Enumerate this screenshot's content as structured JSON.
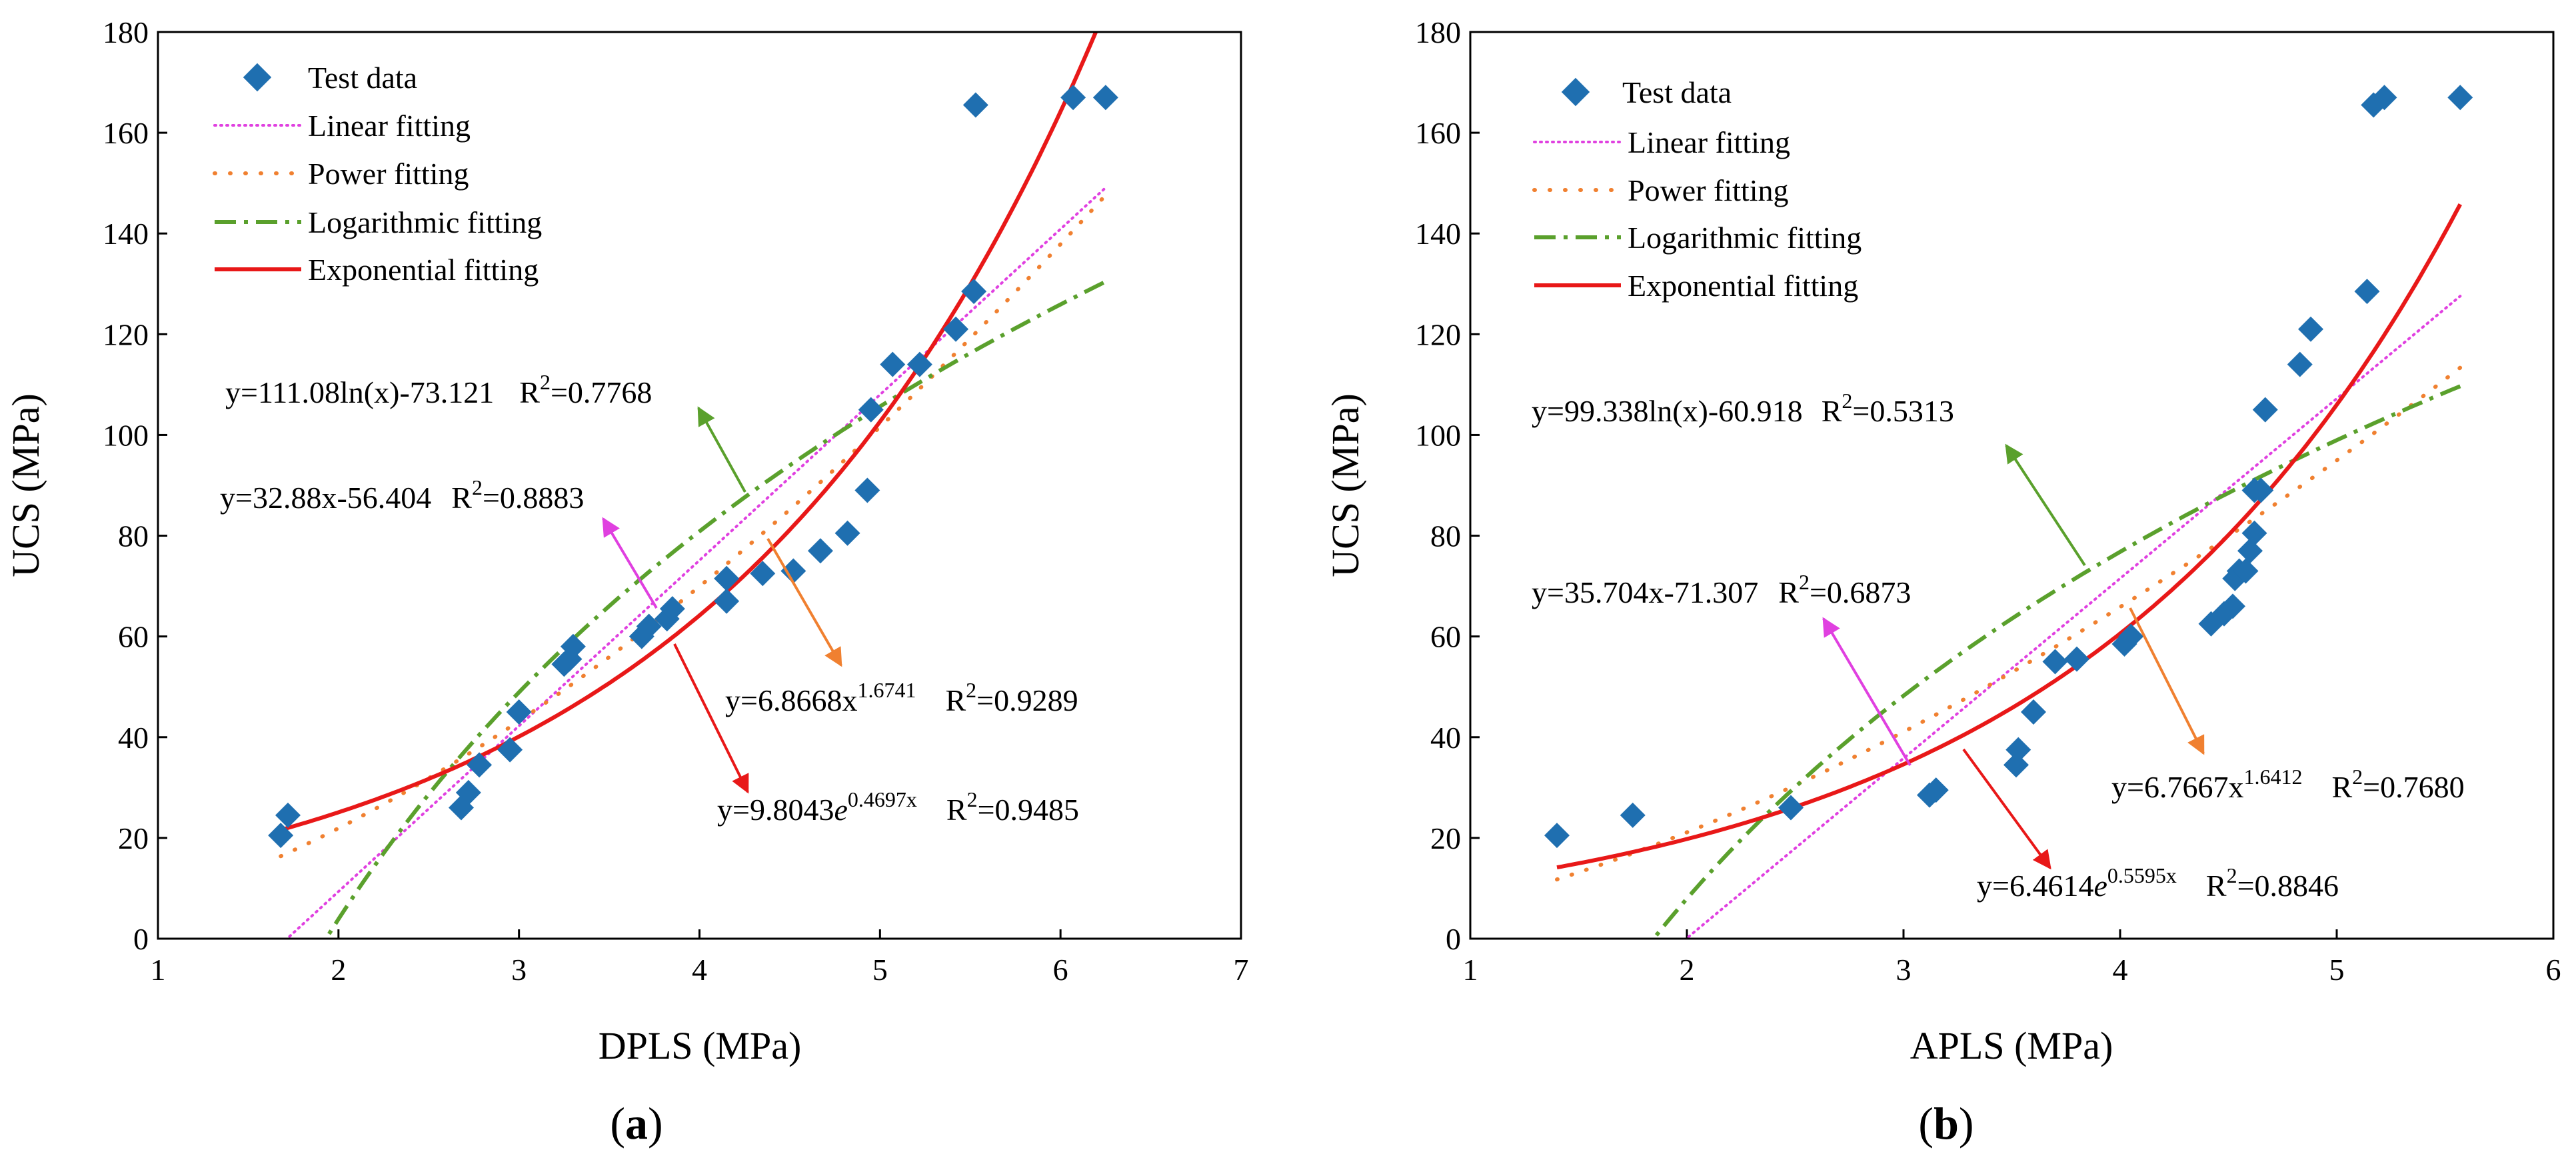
{
  "figure": {
    "colors": {
      "data": "#1f6fb0",
      "linear": "#e040e0",
      "power": "#f08030",
      "log": "#5aa02c",
      "exp": "#e81818"
    }
  },
  "chart_data": [
    {
      "type": "scatter",
      "panel_label": "(a)",
      "xlabel": "DPLS (MPa)",
      "ylabel": "UCS (MPa)",
      "xlim": [
        1,
        7
      ],
      "ylim": [
        0,
        180
      ],
      "xticks": [
        1,
        2,
        3,
        4,
        5,
        6,
        7
      ],
      "yticks": [
        0,
        20,
        40,
        60,
        80,
        100,
        120,
        140,
        160,
        180
      ],
      "legend": [
        "Test data",
        "Linear fitting",
        "Power fitting",
        "Logarithmic fitting",
        "Exponential fitting"
      ],
      "series": [
        {
          "name": "Test data",
          "x": [
            1.68,
            1.72,
            2.68,
            2.72,
            2.78,
            2.95,
            3.0,
            3.25,
            3.28,
            3.3,
            3.68,
            3.72,
            3.82,
            3.85,
            4.15,
            4.15,
            4.35,
            4.52,
            4.67,
            4.82,
            4.93,
            4.95,
            5.07,
            5.22,
            5.42,
            5.52,
            5.53,
            6.07,
            6.25
          ],
          "y": [
            20.5,
            24.5,
            26,
            29,
            34.5,
            37.5,
            45,
            54.5,
            55.5,
            58,
            60,
            62,
            63.5,
            65.5,
            67,
            71.5,
            72.5,
            73,
            77,
            80.5,
            89,
            105,
            114,
            114,
            121,
            128.5,
            165.5,
            167,
            167
          ]
        }
      ],
      "fits": [
        {
          "name": "Linear fitting",
          "kind": "linear",
          "a": 32.88,
          "b": -56.404,
          "x_range": [
            1.68,
            6.25
          ]
        },
        {
          "name": "Power fitting",
          "kind": "power",
          "a": 6.8668,
          "b": 1.6741,
          "x_range": [
            1.68,
            6.25
          ]
        },
        {
          "name": "Logarithmic fitting",
          "kind": "log",
          "a": 111.08,
          "b": -73.121,
          "x_range": [
            1.68,
            6.25
          ]
        },
        {
          "name": "Exponential fitting",
          "kind": "exp",
          "a": 9.8043,
          "b": 0.4697,
          "x_range": [
            1.68,
            6.25
          ]
        }
      ],
      "annotations": {
        "log_eq": "y=111.08ln(x)-73.121",
        "log_r2_value": "=0.7768",
        "lin_eq": "y=32.88x-56.404",
        "lin_r2_value": "=0.8883",
        "pow_eq_base": "y=6.8668x",
        "pow_eq_exp": "1.6741",
        "pow_r2_value": "=0.9289",
        "exp_eq_base": "y=9.8043",
        "exp_eq_e": "e",
        "exp_eq_exp": "0.4697x",
        "exp_r2_value": "=0.9485"
      }
    },
    {
      "type": "scatter",
      "panel_label": "(b)",
      "xlabel": "APLS (MPa)",
      "ylabel": "UCS (MPa)",
      "xlim": [
        1,
        6
      ],
      "ylim": [
        0,
        180
      ],
      "xticks": [
        1,
        2,
        3,
        4,
        5,
        6
      ],
      "yticks": [
        0,
        20,
        40,
        60,
        80,
        100,
        120,
        140,
        160,
        180
      ],
      "legend": [
        "Test data",
        "Linear fitting",
        "Power fitting",
        "Logarithmic fitting",
        "Exponential fitting"
      ],
      "series": [
        {
          "name": "Test data",
          "x": [
            1.4,
            1.75,
            2.48,
            3.12,
            3.15,
            3.52,
            3.53,
            3.6,
            3.7,
            3.8,
            4.02,
            4.05,
            4.42,
            4.48,
            4.52,
            4.53,
            4.55,
            4.58,
            4.6,
            4.62,
            4.62,
            4.65,
            4.67,
            4.83,
            4.88,
            5.14,
            5.17,
            5.22,
            5.57
          ],
          "y": [
            20.5,
            24.5,
            26,
            28.5,
            29.5,
            34.5,
            37.5,
            45,
            55,
            55.5,
            58.5,
            60,
            62.5,
            64.5,
            66,
            71.5,
            73,
            73,
            77,
            80.5,
            89,
            89,
            105,
            114,
            121,
            128.5,
            165.5,
            167,
            167
          ]
        }
      ],
      "fits": [
        {
          "name": "Linear fitting",
          "kind": "linear",
          "a": 35.704,
          "b": -71.307,
          "x_range": [
            1.4,
            5.57
          ]
        },
        {
          "name": "Power fitting",
          "kind": "power",
          "a": 6.7667,
          "b": 1.6412,
          "x_range": [
            1.4,
            5.57
          ]
        },
        {
          "name": "Logarithmic fitting",
          "kind": "log",
          "a": 99.338,
          "b": -60.918,
          "x_range": [
            1.4,
            5.57
          ]
        },
        {
          "name": "Exponential fitting",
          "kind": "exp",
          "a": 6.4614,
          "b": 0.5595,
          "x_range": [
            1.4,
            5.57
          ]
        }
      ],
      "annotations": {
        "log_eq": "y=99.338ln(x)-60.918",
        "log_r2_value": "=0.5313",
        "lin_eq": "y=35.704x-71.307",
        "lin_r2_value": "=0.6873",
        "pow_eq_base": "y=6.7667x",
        "pow_eq_exp": "1.6412",
        "pow_r2_value": "=0.7680",
        "exp_eq_base": "y=6.4614",
        "exp_eq_e": "e",
        "exp_eq_exp": "0.5595x",
        "exp_r2_value": "=0.8846"
      }
    }
  ],
  "labels": {
    "r2_base": "R",
    "r2_sup": "2"
  }
}
